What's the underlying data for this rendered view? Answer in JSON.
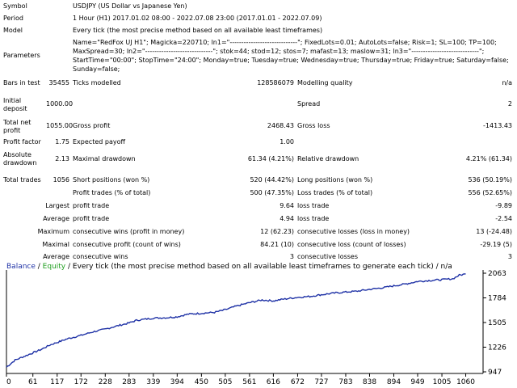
{
  "symbol": {
    "label": "Symbol",
    "value": "USDJPY (US Dollar vs Japanese Yen)"
  },
  "period": {
    "label": "Period",
    "value": "1 Hour (H1) 2017.01.02 08:00 - 2022.07.08 23:00 (2017.01.01 - 2022.07.09)"
  },
  "model": {
    "label": "Model",
    "value": "Every tick (the most precise method based on all available least timeframes)"
  },
  "parameters": {
    "label": "Parameters",
    "value": "Name=\"RedFox UJ H1\"; Magicka=220710; ln1=\"-----------------------------\"; FixedLots=0.01; AutoLots=false; Risk=1; SL=100; TP=100; MaxSpread=30; ln2=\"-----------------------------\"; stok=44; stod=12; stos=7; mafast=13; maslow=31; ln3=\"-----------------------------\"; StartTime=\"00:00\"; StopTime=\"24:00\"; Monday=true; Tuesday=true; Wednesday=true; Thursday=true; Friday=true; Saturday=false; Sunday=false;"
  },
  "bars_in_test": {
    "label": "Bars in test",
    "value": "35455"
  },
  "ticks_modelled": {
    "label": "Ticks modelled",
    "value": "128586079"
  },
  "modelling_quality": {
    "label": "Modelling quality",
    "value": "n/a"
  },
  "initial_deposit": {
    "label": "Initial deposit",
    "value": "1000.00"
  },
  "spread": {
    "label": "Spread",
    "value": "2"
  },
  "total_net_profit": {
    "label": "Total net profit",
    "value": "1055.00"
  },
  "gross_profit": {
    "label": "Gross profit",
    "value": "2468.43"
  },
  "gross_loss": {
    "label": "Gross loss",
    "value": "-1413.43"
  },
  "profit_factor": {
    "label": "Profit factor",
    "value": "1.75"
  },
  "expected_payoff": {
    "label": "Expected payoff",
    "value": "1.00"
  },
  "absolute_drawdown": {
    "label": "Absolute drawdown",
    "value": "2.13"
  },
  "maximal_drawdown": {
    "label": "Maximal drawdown",
    "value": "61.34 (4.21%)"
  },
  "relative_drawdown": {
    "label": "Relative drawdown",
    "value": "4.21% (61.34)"
  },
  "total_trades": {
    "label": "Total trades",
    "value": "1056"
  },
  "short_positions": {
    "label": "Short positions (won %)",
    "value": "520 (44.42%)"
  },
  "long_positions": {
    "label": "Long positions (won %)",
    "value": "536 (50.19%)"
  },
  "profit_trades": {
    "label": "Profit trades (% of total)",
    "value": "500 (47.35%)"
  },
  "loss_trades": {
    "label": "Loss trades (% of total)",
    "value": "556 (52.65%)"
  },
  "largest": {
    "label": "Largest",
    "profit_label": "profit trade",
    "profit_value": "9.64",
    "loss_label": "loss trade",
    "loss_value": "-9.89"
  },
  "average": {
    "label": "Average",
    "profit_label": "profit trade",
    "profit_value": "4.94",
    "loss_label": "loss trade",
    "loss_value": "-2.54"
  },
  "maximum": {
    "label": "Maximum",
    "wins_label": "consecutive wins (profit in money)",
    "wins_value": "12 (62.23)",
    "losses_label": "consecutive losses (loss in money)",
    "losses_value": "13 (-24.48)"
  },
  "maximal": {
    "label": "Maximal",
    "profit_label": "consecutive profit (count of wins)",
    "profit_value": "84.21 (10)",
    "loss_label": "consecutive loss (count of losses)",
    "loss_value": "-29.19 (5)"
  },
  "average_consec": {
    "label": "Average",
    "wins_label": "consecutive wins",
    "wins_value": "3",
    "losses_label": "consecutive losses",
    "losses_value": "3"
  },
  "chart_data": {
    "type": "line",
    "legend_balance": "Balance",
    "legend_sep": " / ",
    "legend_equity": "Equity",
    "legend_rest": " / Every tick (the most precise method based on all available least timeframes to generate each tick) / n/a",
    "xticks": [
      0,
      61,
      117,
      172,
      228,
      283,
      339,
      394,
      450,
      505,
      561,
      616,
      672,
      727,
      783,
      838,
      894,
      949,
      1005,
      1060
    ],
    "yticks": [
      947,
      1226,
      1505,
      1784,
      2063
    ],
    "xlim": [
      0,
      1100
    ],
    "ylim": [
      947,
      2063
    ],
    "grid": false,
    "series": [
      {
        "name": "Balance",
        "color": "#1f32a6",
        "x": [
          0,
          20,
          40,
          60,
          80,
          100,
          117,
          140,
          172,
          200,
          228,
          250,
          283,
          300,
          339,
          370,
          394,
          420,
          450,
          480,
          505,
          530,
          561,
          590,
          616,
          640,
          672,
          700,
          727,
          760,
          783,
          810,
          838,
          870,
          894,
          920,
          949,
          975,
          1005,
          1030,
          1045,
          1060
        ],
        "values": [
          1000,
          1080,
          1120,
          1160,
          1200,
          1250,
          1280,
          1320,
          1360,
          1400,
          1430,
          1460,
          1500,
          1530,
          1555,
          1560,
          1570,
          1600,
          1610,
          1620,
          1650,
          1690,
          1730,
          1760,
          1750,
          1770,
          1790,
          1800,
          1820,
          1840,
          1850,
          1860,
          1880,
          1900,
          1920,
          1940,
          1970,
          1980,
          1990,
          2000,
          2040,
          2055
        ]
      }
    ],
    "axis_color": "#000000"
  }
}
